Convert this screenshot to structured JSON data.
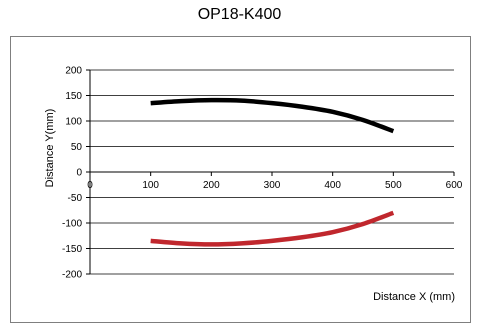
{
  "chart_data": {
    "type": "line",
    "title": "OP18-K400",
    "xlabel": "Distance X (mm)",
    "ylabel": "Distance Y(mm)",
    "xlim": [
      0,
      600
    ],
    "ylim": [
      -200,
      200
    ],
    "xticks": [
      0,
      100,
      200,
      300,
      400,
      500,
      600
    ],
    "yticks": [
      200,
      150,
      100,
      50,
      0,
      -50,
      -100,
      -150,
      -200
    ],
    "grid": "horizontal",
    "series": [
      {
        "color": "#000000",
        "x": [
          100,
          150,
          200,
          250,
          300,
          350,
          400,
          450,
          500
        ],
        "y": [
          135,
          139,
          141,
          140,
          135,
          128,
          118,
          102,
          80
        ]
      },
      {
        "color": "#c0272d",
        "x": [
          100,
          150,
          200,
          250,
          300,
          350,
          400,
          450,
          500
        ],
        "y": [
          -135,
          -140,
          -142,
          -140,
          -135,
          -128,
          -118,
          -102,
          -80
        ]
      }
    ]
  }
}
